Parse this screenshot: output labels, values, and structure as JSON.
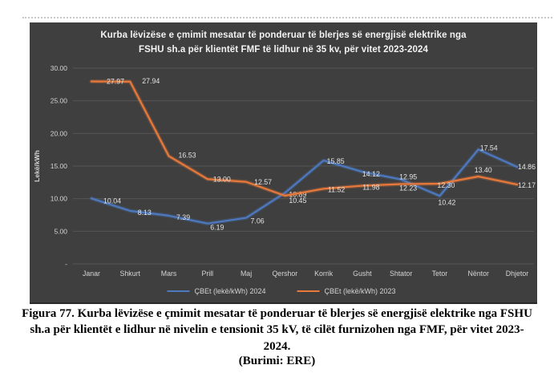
{
  "figure": {
    "caption": "Figura 77. Kurba lëvizëse e çmimit mesatar të ponderuar të blerjes së energjisë elektrike nga FSHU sh.a për klientët e lidhur në nivelin e tensionit 35 kV, të cilët furnizohen nga FMF, për vitet 2023-2024.",
    "source": "(Burimi: ERE)"
  },
  "chart_data": {
    "type": "line",
    "title": "Kurba lëvizëse e çmimit mesatar të ponderuar të blerjes së energjisë elektrike nga FSHU sh.a për klientët FMF të lidhur në 35 kv, për vitet 2023-2024",
    "title_lines": [
      "Kurba lëvizëse e çmimit mesatar të ponderuar të blerjes së energjisë elektrike nga",
      "FSHU sh.a për klientët FMF të lidhur në 35 kv, për vitet 2023-2024"
    ],
    "xlabel": "",
    "ylabel": "Lekë/kWh",
    "categories": [
      "Janar",
      "Shkurt",
      "Mars",
      "Prill",
      "Maj",
      "Qershor",
      "Korrik",
      "Gusht",
      "Shtator",
      "Tetor",
      "Nëntor",
      "Dhjetor"
    ],
    "series": [
      {
        "name": "ÇBEt (lekë/kWh) 2024",
        "color": "#4d79c0",
        "values": [
          10.04,
          8.13,
          7.39,
          6.19,
          7.06,
          10.89,
          15.85,
          14.12,
          12.95,
          10.42,
          17.54,
          14.86
        ]
      },
      {
        "name": "ÇBEt (lekë/kWh) 2023",
        "color": "#e8793a",
        "values": [
          27.97,
          27.94,
          16.53,
          13.0,
          12.57,
          10.45,
          11.52,
          11.98,
          12.23,
          12.3,
          13.4,
          12.17
        ]
      }
    ],
    "ylim": [
      0,
      30
    ],
    "yticks": [
      0,
      5,
      10,
      15,
      20,
      25,
      30
    ],
    "ytick_labels": [
      "-",
      "5.00",
      "10.00",
      "15.00",
      "20.00",
      "25.00",
      "30.00"
    ],
    "grid": true,
    "legend_position": "bottom",
    "panel_bg": "#3f3f3f",
    "grid_color": "#565656",
    "text_color": "#d4d4d4",
    "label_color": "#e3e3e3",
    "label_offsets": [
      [
        [
          26,
          3
        ],
        [
          18,
          2
        ],
        [
          18,
          2
        ],
        [
          12,
          5
        ],
        [
          14,
          4
        ],
        [
          16,
          2
        ],
        [
          15,
          1
        ],
        [
          11,
          3
        ],
        [
          9,
          -3
        ],
        [
          9,
          8
        ],
        [
          13,
          -2
        ],
        [
          12,
          0
        ]
      ],
      [
        [
          30,
          0
        ],
        [
          26,
          -1
        ],
        [
          23,
          -1
        ],
        [
          18,
          0
        ],
        [
          21,
          0
        ],
        [
          16,
          6
        ],
        [
          16,
          1
        ],
        [
          11,
          2
        ],
        [
          9,
          5
        ],
        [
          8,
          2
        ],
        [
          6,
          -8
        ],
        [
          12,
          1
        ]
      ]
    ]
  }
}
